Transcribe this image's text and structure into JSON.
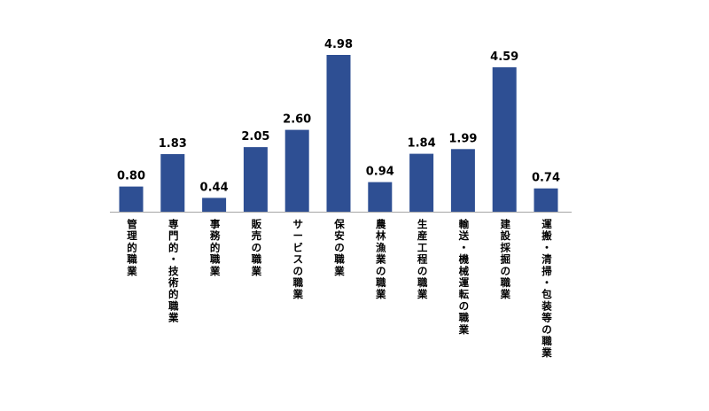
{
  "chart_data": {
    "type": "bar",
    "categories": [
      "管理的職業",
      "専門的・技術的職業",
      "事務的職業",
      "販売の職業",
      "サービスの職業",
      "保安の職業",
      "農林漁業の職業",
      "生産工程の職業",
      "輸送・機械運転の職業",
      "建設採掘の職業",
      "運搬・清掃・包装等の職業"
    ],
    "values": [
      0.8,
      1.83,
      0.44,
      2.05,
      2.6,
      4.98,
      0.94,
      1.84,
      1.99,
      4.59,
      0.74
    ],
    "data_labels": [
      "0.80",
      "1.83",
      "0.44",
      "2.05",
      "2.60",
      "4.98",
      "0.94",
      "1.84",
      "1.99",
      "4.59",
      "0.74"
    ],
    "ylim": [
      0,
      4.98
    ],
    "grid": false,
    "legend": "none",
    "colors": {
      "bar": "#2E4F93",
      "axis": "#A6A6A6",
      "text": "#000000"
    }
  }
}
